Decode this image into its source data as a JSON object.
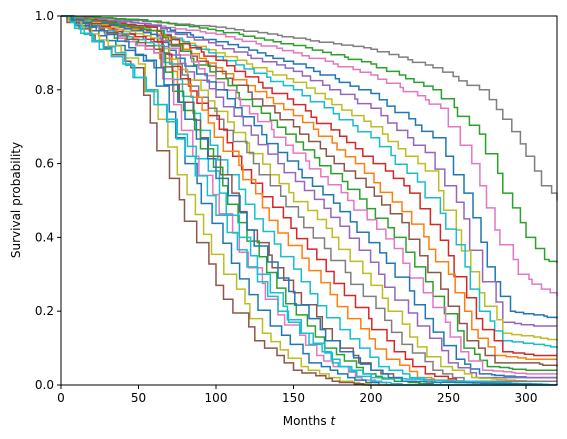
{
  "chart_data": {
    "type": "line",
    "title": "",
    "xlabel_prefix": "Months ",
    "xlabel_var": "t",
    "ylabel": "Survival probability",
    "xlim": [
      0,
      320
    ],
    "ylim": [
      0.0,
      1.0
    ],
    "xticks": [
      0,
      50,
      100,
      150,
      200,
      250,
      300
    ],
    "yticks": [
      0.0,
      0.2,
      0.4,
      0.6,
      0.8,
      1.0
    ],
    "xtick_labels": [
      "0",
      "50",
      "100",
      "150",
      "200",
      "250",
      "300"
    ],
    "ytick_labels": [
      "0.0",
      "0.2",
      "0.4",
      "0.6",
      "0.8",
      "1.0"
    ],
    "grid": false,
    "legend": "none",
    "step_curves": true,
    "palette": [
      "#1f77b4",
      "#ff7f0e",
      "#2ca02c",
      "#d62728",
      "#9467bd",
      "#8c564b",
      "#e377c2",
      "#7f7f7f",
      "#bcbd22",
      "#17becf"
    ],
    "series": [
      {
        "color": "#7f7f7f",
        "x": [
          0,
          40,
          100,
          150,
          200,
          240,
          270,
          285,
          300,
          310,
          320
        ],
        "y": [
          1.0,
          0.99,
          0.97,
          0.94,
          0.91,
          0.86,
          0.8,
          0.72,
          0.62,
          0.54,
          0.5
        ]
      },
      {
        "color": "#2ca02c",
        "x": [
          0,
          50,
          100,
          150,
          200,
          240,
          270,
          285,
          300,
          312,
          320
        ],
        "y": [
          1.0,
          0.99,
          0.96,
          0.92,
          0.87,
          0.8,
          0.68,
          0.52,
          0.4,
          0.34,
          0.33
        ]
      },
      {
        "color": "#e377c2",
        "x": [
          0,
          50,
          100,
          150,
          200,
          245,
          265,
          280,
          295,
          310,
          320
        ],
        "y": [
          1.0,
          0.98,
          0.95,
          0.9,
          0.84,
          0.75,
          0.6,
          0.42,
          0.3,
          0.26,
          0.24
        ]
      },
      {
        "color": "#1f77b4",
        "x": [
          0,
          50,
          100,
          150,
          200,
          240,
          260,
          275,
          290,
          305,
          320
        ],
        "y": [
          1.0,
          0.98,
          0.93,
          0.87,
          0.79,
          0.67,
          0.52,
          0.32,
          0.2,
          0.19,
          0.18
        ]
      },
      {
        "color": "#9467bd",
        "x": [
          0,
          50,
          100,
          150,
          200,
          235,
          260,
          272,
          285,
          305,
          320
        ],
        "y": [
          1.0,
          0.98,
          0.92,
          0.85,
          0.75,
          0.63,
          0.45,
          0.28,
          0.17,
          0.16,
          0.16
        ]
      },
      {
        "color": "#bcbd22",
        "x": [
          0,
          50,
          100,
          150,
          200,
          235,
          255,
          270,
          285,
          305,
          320
        ],
        "y": [
          1.0,
          0.97,
          0.9,
          0.82,
          0.7,
          0.58,
          0.42,
          0.25,
          0.14,
          0.13,
          0.12
        ]
      },
      {
        "color": "#17becf",
        "x": [
          0,
          55,
          100,
          150,
          200,
          230,
          255,
          270,
          285,
          305,
          320
        ],
        "y": [
          1.0,
          0.97,
          0.89,
          0.8,
          0.67,
          0.55,
          0.38,
          0.2,
          0.12,
          0.11,
          0.1
        ]
      },
      {
        "color": "#d62728",
        "x": [
          0,
          55,
          100,
          150,
          190,
          225,
          250,
          268,
          285,
          305,
          320
        ],
        "y": [
          1.0,
          0.97,
          0.88,
          0.76,
          0.64,
          0.52,
          0.35,
          0.18,
          0.09,
          0.08,
          0.08
        ]
      },
      {
        "color": "#ff7f0e",
        "x": [
          0,
          55,
          100,
          150,
          190,
          220,
          250,
          265,
          280,
          300,
          320
        ],
        "y": [
          1.0,
          0.96,
          0.86,
          0.73,
          0.6,
          0.47,
          0.3,
          0.15,
          0.08,
          0.07,
          0.07
        ]
      },
      {
        "color": "#8c564b",
        "x": [
          0,
          55,
          100,
          150,
          190,
          220,
          245,
          262,
          280,
          300,
          320
        ],
        "y": [
          1.0,
          0.96,
          0.85,
          0.7,
          0.56,
          0.44,
          0.26,
          0.12,
          0.06,
          0.06,
          0.05
        ]
      },
      {
        "color": "#2ca02c",
        "x": [
          0,
          58,
          100,
          145,
          185,
          215,
          240,
          260,
          275,
          300,
          320
        ],
        "y": [
          1.0,
          0.96,
          0.83,
          0.68,
          0.53,
          0.4,
          0.24,
          0.1,
          0.05,
          0.04,
          0.04
        ]
      },
      {
        "color": "#e377c2",
        "x": [
          0,
          58,
          100,
          145,
          185,
          215,
          240,
          258,
          272,
          300,
          320
        ],
        "y": [
          1.0,
          0.95,
          0.82,
          0.65,
          0.5,
          0.37,
          0.21,
          0.09,
          0.04,
          0.03,
          0.03
        ]
      },
      {
        "color": "#1f77b4",
        "x": [
          0,
          58,
          100,
          140,
          180,
          210,
          235,
          255,
          270,
          300,
          320
        ],
        "y": [
          1.0,
          0.95,
          0.8,
          0.63,
          0.47,
          0.33,
          0.18,
          0.07,
          0.03,
          0.02,
          0.02
        ]
      },
      {
        "color": "#9467bd",
        "x": [
          0,
          58,
          100,
          140,
          180,
          205,
          230,
          250,
          268,
          300,
          320
        ],
        "y": [
          1.0,
          0.94,
          0.78,
          0.6,
          0.43,
          0.3,
          0.16,
          0.06,
          0.02,
          0.02,
          0.02
        ]
      },
      {
        "color": "#bcbd22",
        "x": [
          0,
          58,
          95,
          135,
          175,
          200,
          225,
          245,
          265,
          300,
          320
        ],
        "y": [
          1.0,
          0.94,
          0.77,
          0.57,
          0.4,
          0.27,
          0.13,
          0.05,
          0.02,
          0.01,
          0.01
        ]
      },
      {
        "color": "#7f7f7f",
        "x": [
          0,
          58,
          95,
          135,
          170,
          195,
          220,
          240,
          260,
          300,
          320
        ],
        "y": [
          1.0,
          0.93,
          0.75,
          0.54,
          0.37,
          0.24,
          0.11,
          0.04,
          0.01,
          0.01,
          0.01
        ]
      },
      {
        "color": "#d62728",
        "x": [
          0,
          60,
          95,
          130,
          165,
          190,
          215,
          235,
          255,
          300,
          320
        ],
        "y": [
          1.0,
          0.93,
          0.73,
          0.51,
          0.34,
          0.21,
          0.09,
          0.03,
          0.01,
          0.0,
          0.0
        ]
      },
      {
        "color": "#ff7f0e",
        "x": [
          0,
          60,
          95,
          130,
          160,
          185,
          210,
          230,
          250,
          300,
          320
        ],
        "y": [
          1.0,
          0.92,
          0.71,
          0.48,
          0.31,
          0.18,
          0.07,
          0.02,
          0.01,
          0.0,
          0.0
        ]
      },
      {
        "color": "#17becf",
        "x": [
          0,
          60,
          90,
          125,
          155,
          180,
          205,
          225,
          245,
          300,
          320
        ],
        "y": [
          1.0,
          0.92,
          0.69,
          0.45,
          0.28,
          0.15,
          0.05,
          0.02,
          0.0,
          0.0,
          0.0
        ]
      },
      {
        "color": "#8c564b",
        "x": [
          0,
          60,
          90,
          120,
          150,
          175,
          200,
          220,
          240,
          300,
          320
        ],
        "y": [
          1.0,
          0.91,
          0.67,
          0.42,
          0.25,
          0.12,
          0.04,
          0.01,
          0.0,
          0.0,
          0.0
        ]
      },
      {
        "color": "#2ca02c",
        "x": [
          0,
          60,
          90,
          120,
          145,
          170,
          195,
          215,
          235,
          300,
          320
        ],
        "y": [
          1.0,
          0.9,
          0.64,
          0.39,
          0.22,
          0.1,
          0.03,
          0.01,
          0.0,
          0.0,
          0.0
        ]
      },
      {
        "color": "#e377c2",
        "x": [
          0,
          60,
          85,
          115,
          140,
          165,
          190,
          210,
          230,
          300,
          320
        ],
        "y": [
          1.0,
          0.9,
          0.62,
          0.36,
          0.19,
          0.08,
          0.02,
          0.0,
          0.0,
          0.0,
          0.0
        ]
      },
      {
        "color": "#1f77b4",
        "x": [
          0,
          55,
          80,
          110,
          135,
          160,
          185,
          205,
          225,
          300,
          320
        ],
        "y": [
          1.0,
          0.88,
          0.6,
          0.33,
          0.16,
          0.06,
          0.02,
          0.0,
          0.0,
          0.0,
          0.0
        ]
      },
      {
        "color": "#bcbd22",
        "x": [
          0,
          50,
          75,
          105,
          130,
          155,
          180,
          200,
          220,
          300,
          320
        ],
        "y": [
          1.0,
          0.87,
          0.57,
          0.3,
          0.14,
          0.05,
          0.01,
          0.0,
          0.0,
          0.0,
          0.0
        ]
      },
      {
        "color": "#8c564b",
        "x": [
          0,
          45,
          70,
          100,
          125,
          150,
          175,
          195,
          215,
          300,
          320
        ],
        "y": [
          1.0,
          0.86,
          0.56,
          0.27,
          0.12,
          0.04,
          0.01,
          0.0,
          0.0,
          0.0,
          0.0
        ]
      },
      {
        "color": "#17becf",
        "x": [
          0,
          20,
          40,
          60,
          80,
          100,
          120,
          140,
          160,
          180,
          200,
          220,
          320
        ],
        "y": [
          1.0,
          0.93,
          0.87,
          0.76,
          0.62,
          0.46,
          0.32,
          0.2,
          0.11,
          0.05,
          0.01,
          0.0,
          0.0
        ]
      },
      {
        "color": "#17becf",
        "x": [
          0,
          15,
          35,
          55,
          75,
          95,
          115,
          135,
          155,
          175,
          200,
          320
        ],
        "y": [
          1.0,
          0.95,
          0.9,
          0.8,
          0.68,
          0.58,
          0.4,
          0.25,
          0.14,
          0.06,
          0.02,
          0.0
        ]
      },
      {
        "color": "#1f77b4",
        "x": [
          0,
          30,
          60,
          80,
          100,
          120,
          140,
          160,
          180,
          200,
          220,
          320
        ],
        "y": [
          1.0,
          0.95,
          0.86,
          0.72,
          0.56,
          0.42,
          0.29,
          0.18,
          0.09,
          0.04,
          0.01,
          0.0
        ]
      }
    ]
  }
}
